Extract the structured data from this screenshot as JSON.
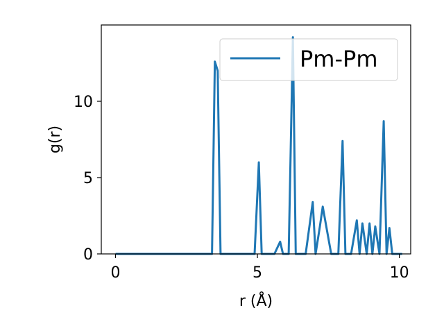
{
  "chart_data": {
    "type": "line",
    "xlabel": "r (Å)",
    "ylabel": "g(r)",
    "xlim": [
      -0.5,
      10.4
    ],
    "ylim": [
      0,
      15
    ],
    "xticks": [
      0,
      5,
      10
    ],
    "yticks": [
      0,
      5,
      10
    ],
    "grid": false,
    "legend_position": "top-right",
    "series": [
      {
        "name": "Pm-Pm",
        "color": "#1f77b4",
        "x": [
          0,
          0.5,
          1.0,
          1.5,
          2.0,
          2.5,
          3.0,
          3.4,
          3.5,
          3.6,
          3.7,
          4.0,
          4.5,
          4.9,
          5.05,
          5.15,
          5.3,
          5.6,
          5.8,
          5.9,
          6.1,
          6.25,
          6.35,
          6.5,
          6.7,
          6.95,
          7.05,
          7.2,
          7.3,
          7.6,
          7.85,
          8.0,
          8.1,
          8.3,
          8.5,
          8.6,
          8.7,
          8.85,
          8.95,
          9.05,
          9.15,
          9.3,
          9.45,
          9.55,
          9.65,
          9.75,
          9.85,
          9.95,
          10.1
        ],
        "y": [
          0,
          0,
          0,
          0,
          0,
          0,
          0,
          0,
          12.6,
          12.0,
          0,
          0,
          0,
          0,
          6.0,
          0,
          0,
          0,
          0.8,
          0,
          0,
          14.2,
          0,
          0,
          0,
          3.4,
          0,
          1.8,
          3.1,
          0,
          0,
          7.4,
          0,
          0,
          2.2,
          0,
          2.0,
          0,
          2.0,
          0,
          1.8,
          0,
          8.7,
          0,
          1.7,
          0,
          0,
          0,
          0
        ]
      }
    ]
  }
}
